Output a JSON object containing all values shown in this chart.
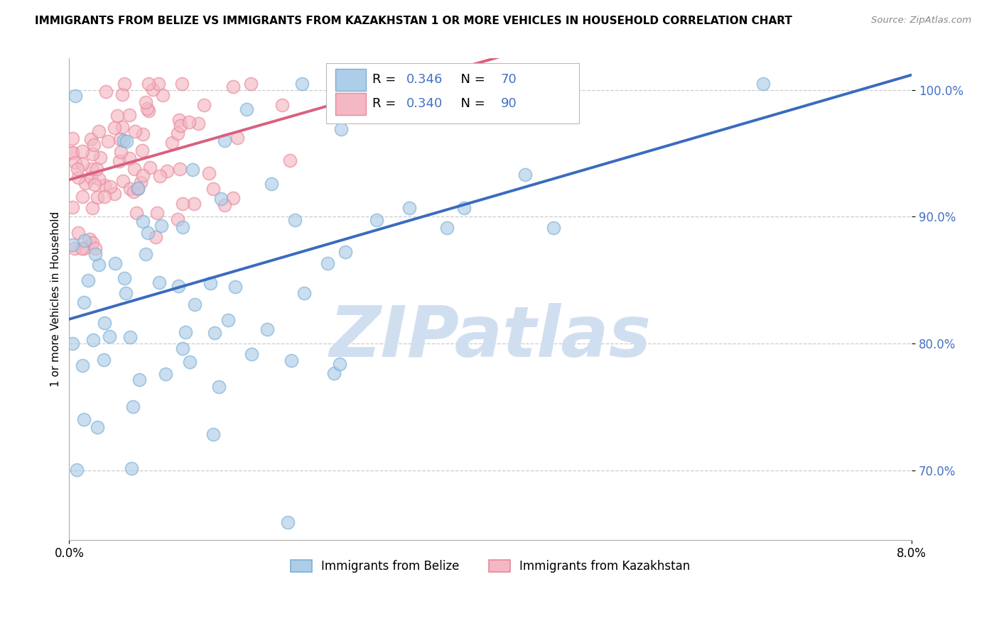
{
  "title": "IMMIGRANTS FROM BELIZE VS IMMIGRANTS FROM KAZAKHSTAN 1 OR MORE VEHICLES IN HOUSEHOLD CORRELATION CHART",
  "source": "Source: ZipAtlas.com",
  "ylabel": "1 or more Vehicles in Household",
  "xlim": [
    0.0,
    0.08
  ],
  "ylim": [
    0.645,
    1.025
  ],
  "ytick_values": [
    0.7,
    0.8,
    0.9,
    1.0
  ],
  "ytick_labels": [
    "70.0%",
    "80.0%",
    "90.0%",
    "100.0%"
  ],
  "xtick_values": [
    0.0,
    0.08
  ],
  "xtick_labels": [
    "0.0%",
    "8.0%"
  ],
  "belize_face": "#aecde8",
  "belize_edge": "#7ab0d4",
  "kaz_face": "#f4b8c4",
  "kaz_edge": "#e88898",
  "belize_line_color": "#3a6bbf",
  "kaz_line_color": "#d96080",
  "belize_R": "0.346",
  "belize_N": "70",
  "kaz_R": "0.340",
  "kaz_N": "90",
  "legend_R_color": "#4472c4",
  "legend_N_color": "#4472c4",
  "watermark_text": "ZIPatlas",
  "watermark_color": "#d0dff0",
  "legend_belize": "Immigrants from Belize",
  "legend_kaz": "Immigrants from Kazakhstan",
  "grid_color": "#c8c8c8",
  "marker_size": 170,
  "marker_alpha": 0.65,
  "line_width": 2.8,
  "title_fontsize": 11,
  "note_black": "black",
  "note_blue": "#4472c4"
}
